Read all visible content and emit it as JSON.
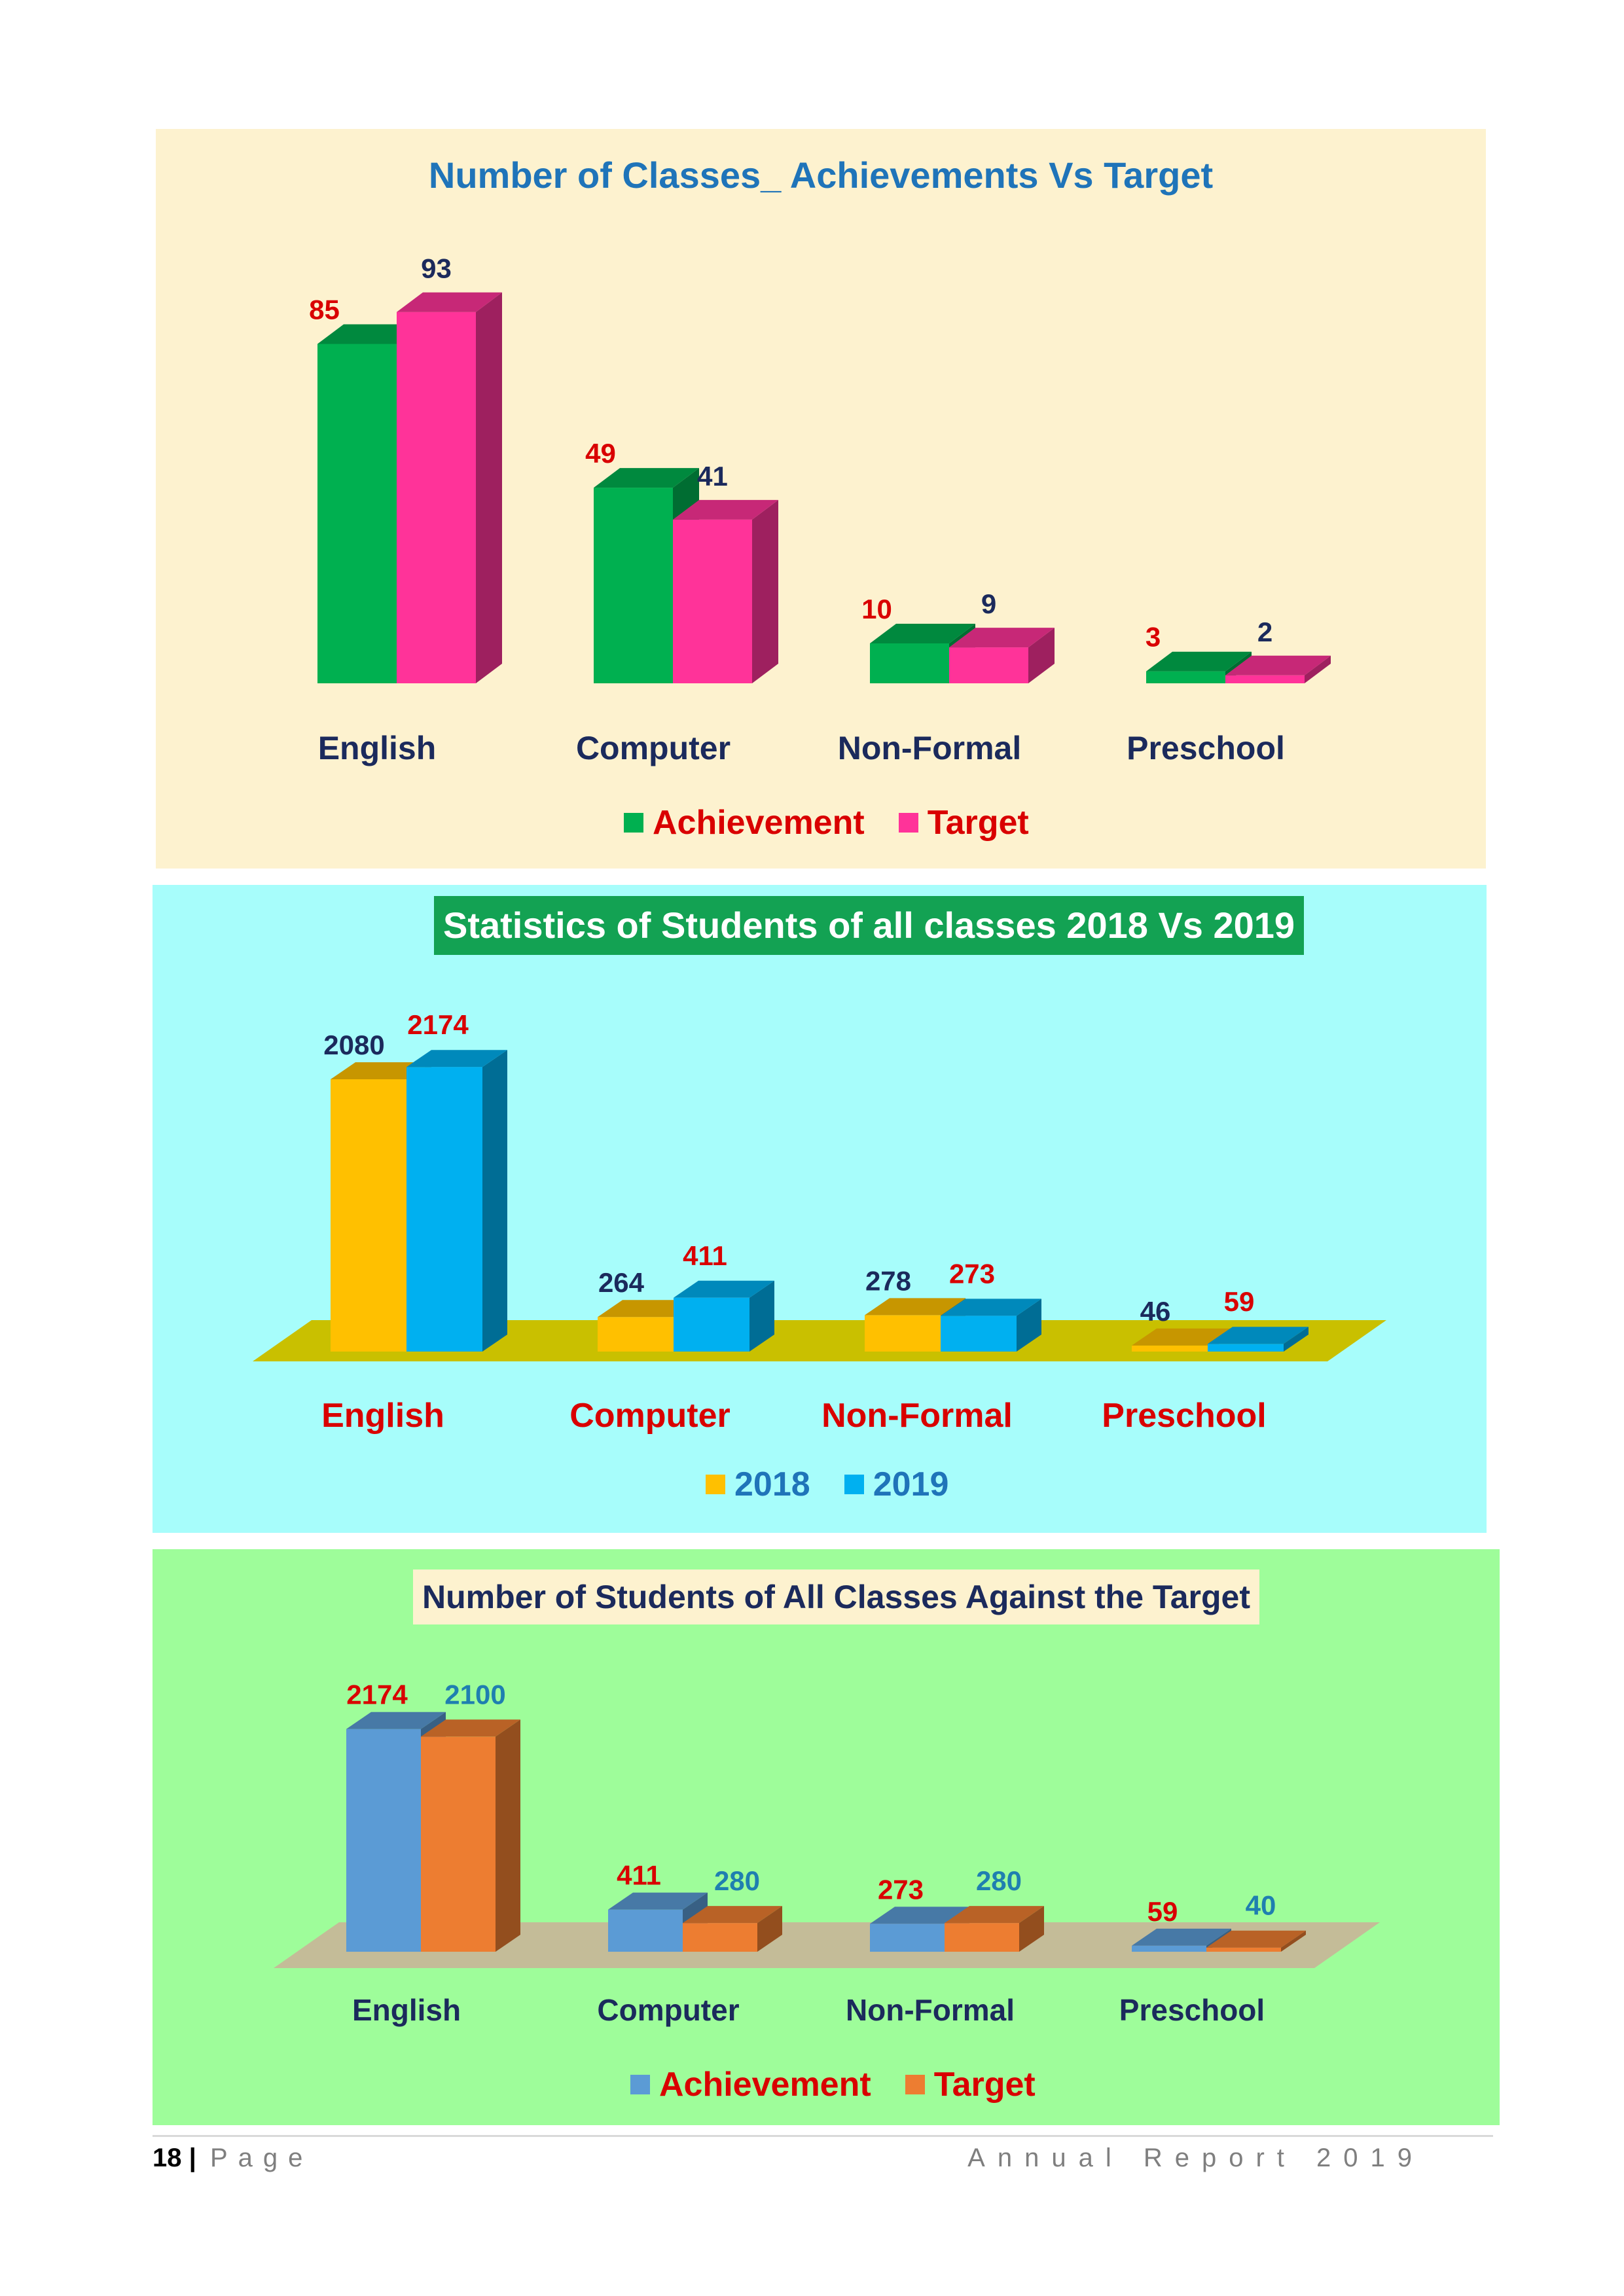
{
  "chart_data": [
    {
      "id": "classes",
      "type": "bar",
      "title": "Number of Classes_ Achievements Vs Target",
      "categories": [
        "English",
        "Computer",
        "Non-Formal",
        "Preschool"
      ],
      "series": [
        {
          "name": "Achievement",
          "values": [
            85,
            49,
            10,
            3
          ],
          "color": "#00b050",
          "label_color": "#d90000"
        },
        {
          "name": "Target",
          "values": [
            93,
            41,
            9,
            2
          ],
          "color": "#ff3399",
          "label_color": "#1b2a5c"
        }
      ],
      "xlabel": "",
      "ylabel": "",
      "ylim": [
        0,
        100
      ],
      "legend_position": "bottom"
    },
    {
      "id": "students",
      "type": "bar",
      "title": "Statistics of Students of all classes 2018 Vs 2019",
      "categories": [
        "English",
        "Computer",
        "Non-Formal",
        "Preschool"
      ],
      "series": [
        {
          "name": "2018",
          "values": [
            2080,
            264,
            278,
            46
          ],
          "color": "#ffc000",
          "label_color": "#1b2a5c"
        },
        {
          "name": "2019",
          "values": [
            2174,
            411,
            273,
            59
          ],
          "color": "#00b0f0",
          "label_color": "#d90000"
        }
      ],
      "xlabel": "",
      "ylabel": "",
      "ylim": [
        0,
        2300
      ],
      "legend_position": "bottom"
    },
    {
      "id": "target",
      "type": "bar",
      "title": "Number of Students of All Classes Against the Target",
      "categories": [
        "English",
        "Computer",
        "Non-Formal",
        "Preschool"
      ],
      "series": [
        {
          "name": "Achievement",
          "values": [
            2174,
            411,
            273,
            59
          ],
          "color": "#5b9bd5",
          "label_color": "#d90000"
        },
        {
          "name": "Target",
          "values": [
            2100,
            280,
            280,
            40
          ],
          "color": "#ed7d31",
          "label_color": "#1f7fb0"
        }
      ],
      "xlabel": "",
      "ylabel": "",
      "ylim": [
        0,
        2300
      ],
      "legend_position": "bottom"
    }
  ],
  "footer": {
    "page_number": "18",
    "separator": "|",
    "page_word": "Page",
    "report_title": "Annual Report 2019"
  }
}
